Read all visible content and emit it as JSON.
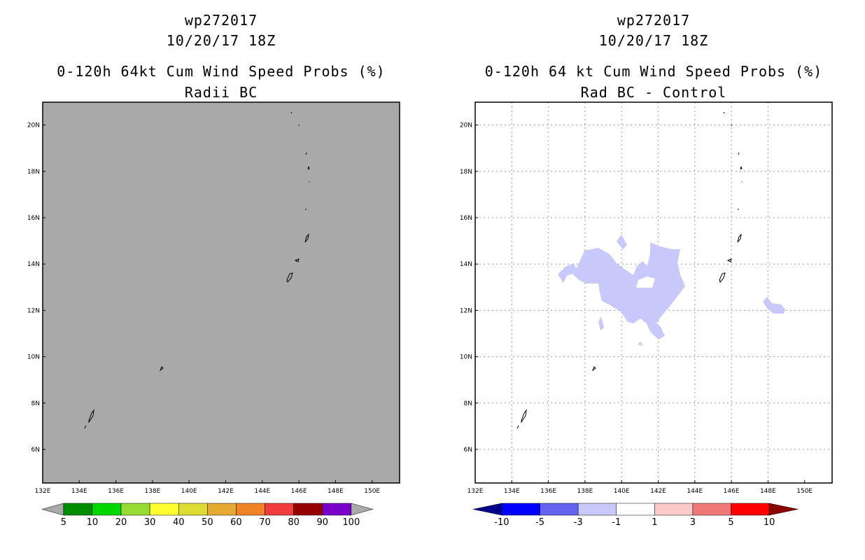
{
  "left": {
    "title1": "wp272017",
    "title2": "10/20/17 18Z",
    "title3": "0-120h 64kt Cum Wind Speed Probs (%)",
    "title4": "Radii BC",
    "map_fill": "#a9a9a9",
    "colorbar": {
      "colors": [
        "#a9a9a9",
        "#008c00",
        "#00d800",
        "#96dc32",
        "#ffff32",
        "#dcdc32",
        "#e6aa32",
        "#f08228",
        "#f03c3c",
        "#960000",
        "#7800c8",
        "#a9a9a9"
      ],
      "labels": [
        "5",
        "10",
        "20",
        "30",
        "40",
        "50",
        "60",
        "70",
        "80",
        "90",
        "100"
      ]
    }
  },
  "right": {
    "title1": "wp272017",
    "title2": "10/20/17 18Z",
    "title3": "0-120h 64 kt Cum Wind Speed Probs (%)",
    "title4": "Rad BC - Control",
    "map_fill": "#ffffff",
    "shade_color": "#c8c8fa",
    "colorbar": {
      "colors": [
        "#00008c",
        "#0000ff",
        "#6464f0",
        "#c8c8fa",
        "#ffffff",
        "#facaca",
        "#f07878",
        "#ff0000",
        "#8c0000"
      ],
      "labels": [
        "-10",
        "-5",
        "-3",
        "-1",
        "1",
        "3",
        "5",
        "10"
      ]
    }
  },
  "x_ticks": [
    "132E",
    "134E",
    "136E",
    "138E",
    "140E",
    "142E",
    "144E",
    "146E",
    "148E",
    "150E"
  ],
  "y_ticks": [
    "6N",
    "8N",
    "10N",
    "12N",
    "14N",
    "16N",
    "18N",
    "20N"
  ]
}
